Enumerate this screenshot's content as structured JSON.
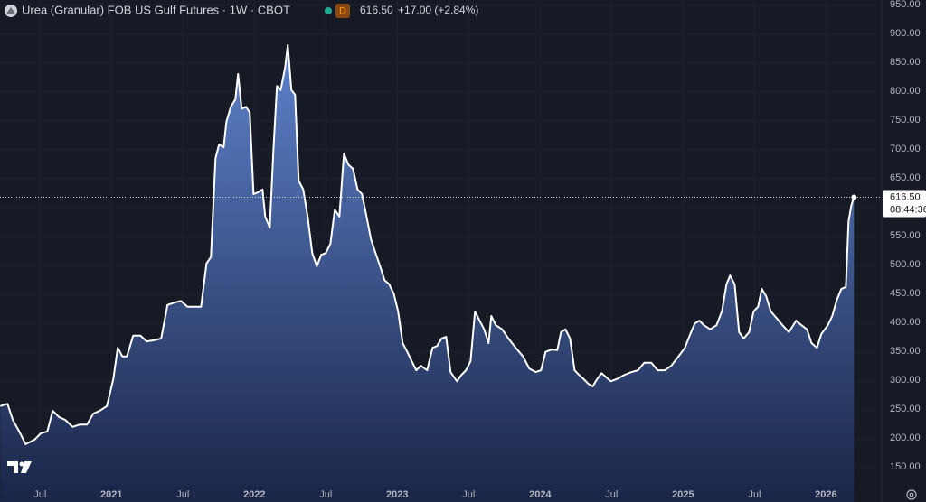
{
  "chart_data": {
    "type": "area",
    "title": "Urea (Granular) FOB US Gulf Futures · 1W · CBOT",
    "badge": "D",
    "price": "616.50",
    "change": "+17.00 (+2.84%)",
    "price_label": "616.50",
    "countdown": "08:44:36",
    "color": "#ffffff",
    "fill_top": "#5e82cc",
    "fill_bottom": "#1a2547",
    "grid": true,
    "xlim": [
      2020.22,
      2026.39
    ],
    "ylim": [
      89,
      958
    ],
    "xticks": [
      {
        "value": 2020.5,
        "label": "Jul"
      },
      2021,
      {
        "value": 2021.5,
        "label": "Jul"
      },
      2022,
      {
        "value": 2022.5,
        "label": "Jul"
      },
      2023,
      {
        "value": 2023.5,
        "label": "Jul"
      },
      2024,
      {
        "value": 2024.5,
        "label": "Jul"
      },
      2025,
      {
        "value": 2025.5,
        "label": "Jul"
      },
      2026
    ],
    "yticks": [
      {
        "value": 150,
        "label": "150.00"
      },
      {
        "value": 200,
        "label": "200.00"
      },
      {
        "value": 250,
        "label": "250.00"
      },
      {
        "value": 300,
        "label": "300.00"
      },
      {
        "value": 350,
        "label": "350.00"
      },
      {
        "value": 400,
        "label": "400.00"
      },
      {
        "value": 450,
        "label": "450.00"
      },
      {
        "value": 500,
        "label": "500.00"
      },
      {
        "value": 550,
        "label": "550.00"
      },
      {
        "value": 600,
        "label": "600.00"
      },
      {
        "value": 650,
        "label": "650.00"
      },
      {
        "value": 700,
        "label": "700.00"
      },
      {
        "value": 750,
        "label": "750.00"
      },
      {
        "value": 800,
        "label": "800.00"
      },
      {
        "value": 850,
        "label": "850.00"
      },
      {
        "value": 900,
        "label": "900.00"
      },
      {
        "value": 950,
        "label": "950.00"
      }
    ],
    "x": [
      2020.222,
      2020.272,
      2020.31,
      2020.361,
      2020.399,
      2020.462,
      2020.506,
      2020.551,
      2020.589,
      2020.633,
      2020.677,
      2020.728,
      2020.778,
      2020.829,
      2020.873,
      2020.918,
      2020.968,
      2021.013,
      2021.044,
      2021.076,
      2021.108,
      2021.152,
      2021.203,
      2021.247,
      2021.297,
      2021.348,
      2021.392,
      2021.437,
      2021.487,
      2021.532,
      2021.582,
      2021.627,
      2021.665,
      2021.696,
      2021.728,
      2021.753,
      2021.785,
      2021.804,
      2021.835,
      2021.867,
      2021.886,
      2021.911,
      2021.943,
      2021.968,
      2021.994,
      2022.025,
      2022.057,
      2022.076,
      2022.108,
      2022.133,
      2022.158,
      2022.184,
      2022.215,
      2022.234,
      2022.259,
      2022.285,
      2022.31,
      2022.342,
      2022.373,
      2022.405,
      2022.437,
      2022.468,
      2022.5,
      2022.532,
      2022.563,
      2022.595,
      2022.627,
      2022.658,
      2022.69,
      2022.722,
      2022.753,
      2022.785,
      2022.816,
      2022.848,
      2022.88,
      2022.911,
      2022.943,
      2022.975,
      2023.006,
      2023.038,
      2023.07,
      2023.101,
      2023.133,
      2023.165,
      2023.209,
      2023.247,
      2023.278,
      2023.31,
      2023.342,
      2023.373,
      2023.418,
      2023.449,
      2023.481,
      2023.513,
      2023.544,
      2023.576,
      2023.608,
      2023.639,
      2023.658,
      2023.69,
      2023.734,
      2023.778,
      2023.829,
      2023.88,
      2023.924,
      2023.968,
      2024.006,
      2024.038,
      2024.082,
      2024.12,
      2024.146,
      2024.177,
      2024.209,
      2024.241,
      2024.272,
      2024.304,
      2024.335,
      2024.367,
      2024.399,
      2024.43,
      2024.462,
      2024.494,
      2024.538,
      2024.589,
      2024.639,
      2024.684,
      2024.728,
      2024.778,
      2024.823,
      2024.873,
      2024.918,
      2024.968,
      2025.013,
      2025.051,
      2025.082,
      2025.114,
      2025.146,
      2025.19,
      2025.234,
      2025.272,
      2025.304,
      2025.329,
      2025.361,
      2025.392,
      2025.424,
      2025.462,
      2025.494,
      2025.525,
      2025.551,
      2025.582,
      2025.614,
      2025.652,
      2025.696,
      2025.741,
      2025.791,
      2025.829,
      2025.867,
      2025.899,
      2025.937,
      2025.968,
      2026.013,
      2026.044,
      2026.076,
      2026.108,
      2026.139,
      2026.158,
      2026.177,
      2026.196
    ],
    "values": [
      255,
      259,
      231,
      208,
      189,
      197,
      208,
      211,
      247,
      236,
      231,
      219,
      223,
      223,
      242,
      247,
      255,
      302,
      356,
      341,
      341,
      377,
      377,
      367,
      369,
      372,
      430,
      434,
      437,
      427,
      427,
      427,
      502,
      513,
      684,
      708,
      703,
      747,
      773,
      786,
      830,
      770,
      773,
      763,
      622,
      625,
      630,
      583,
      564,
      697,
      809,
      802,
      841,
      880,
      802,
      794,
      645,
      630,
      583,
      520,
      497,
      517,
      520,
      536,
      595,
      583,
      692,
      673,
      666,
      630,
      622,
      583,
      544,
      520,
      497,
      473,
      466,
      450,
      419,
      364,
      349,
      333,
      317,
      325,
      317,
      356,
      359,
      372,
      375,
      314,
      298,
      309,
      317,
      333,
      419,
      403,
      388,
      364,
      411,
      395,
      388,
      372,
      356,
      341,
      320,
      314,
      317,
      349,
      353,
      352,
      383,
      388,
      372,
      317,
      309,
      302,
      294,
      289,
      302,
      312,
      305,
      298,
      302,
      309,
      314,
      317,
      330,
      330,
      317,
      317,
      325,
      341,
      356,
      380,
      398,
      403,
      395,
      388,
      395,
      419,
      466,
      481,
      466,
      383,
      372,
      383,
      419,
      427,
      458,
      445,
      419,
      408,
      395,
      383,
      403,
      395,
      388,
      364,
      356,
      380,
      395,
      411,
      439,
      458,
      461,
      575,
      602,
      616.5
    ]
  }
}
